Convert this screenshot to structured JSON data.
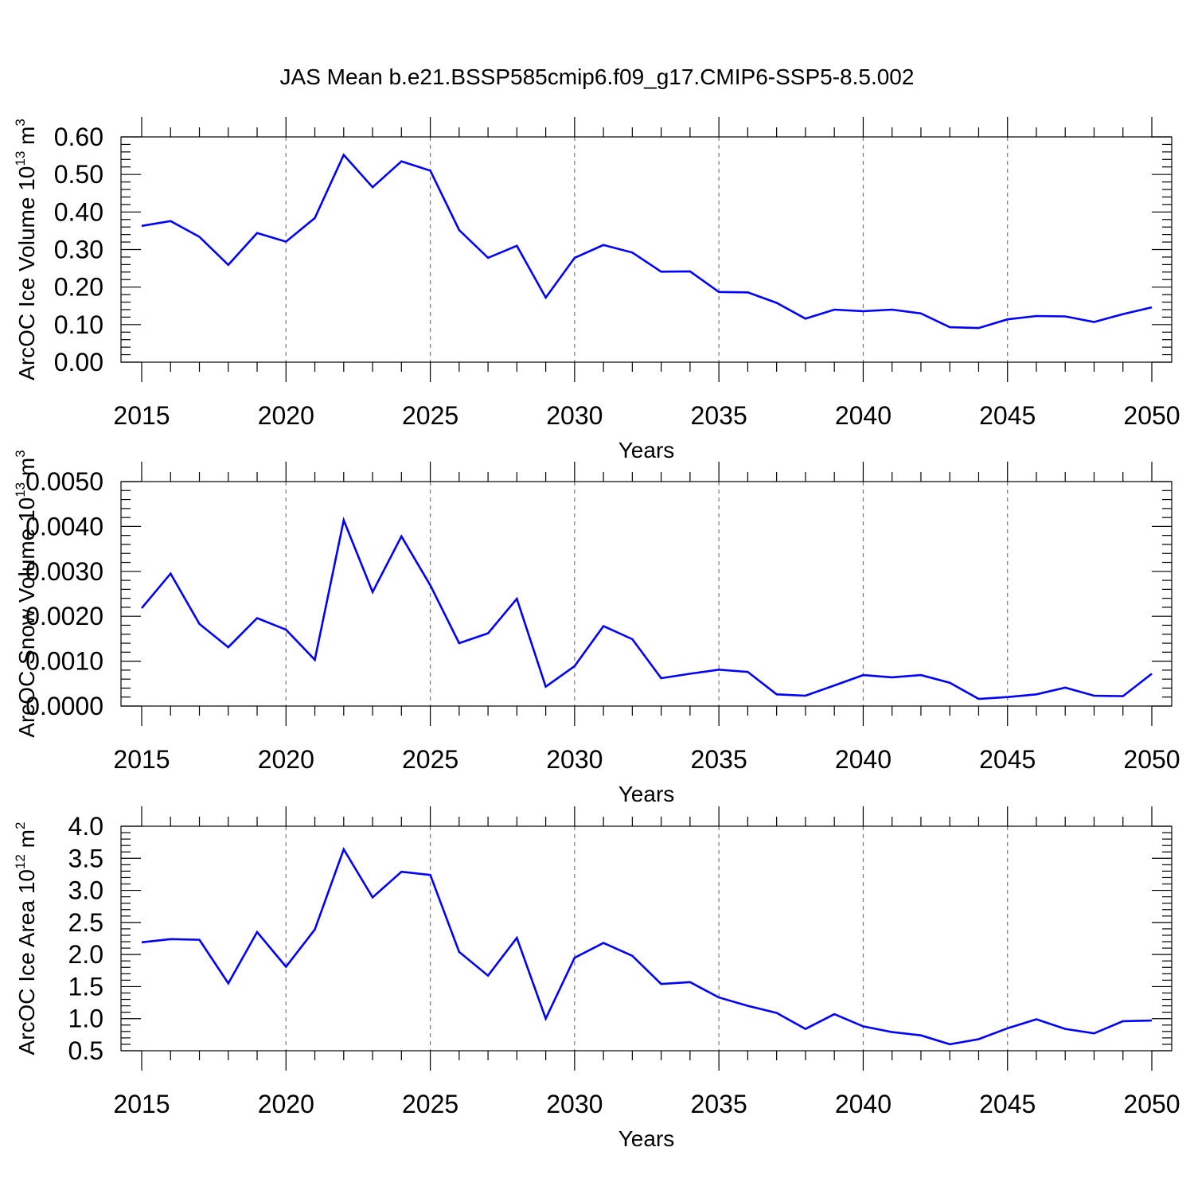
{
  "figure": {
    "title": "JAS Mean b.e21.BSSP585cmip6.f09_g17.CMIP6-SSP5-8.5.002"
  },
  "chart_data": [
    {
      "type": "line",
      "title": "JAS Mean b.e21.BSSP585cmip6.f09_g17.CMIP6-SSP5-8.5.002",
      "xlabel": "Years",
      "ylabel": {
        "main": "ArcOC Ice Volume 10",
        "exp": "13",
        "unit": " m",
        "unit_exp": "3"
      },
      "xlim": [
        2015,
        2050
      ],
      "ylim": [
        0.0,
        0.6
      ],
      "xticks": [
        "2015",
        "2020",
        "2025",
        "2030",
        "2035",
        "2040",
        "2045",
        "2050"
      ],
      "yticks": [
        "0.00",
        "0.10",
        "0.20",
        "0.30",
        "0.40",
        "0.50",
        "0.60"
      ],
      "ytick_values": [
        0.0,
        0.1,
        0.2,
        0.3,
        0.4,
        0.5,
        0.6
      ],
      "grid": "vertical dashed at major x ticks",
      "color": "#0000ff",
      "x": [
        2015,
        2016,
        2017,
        2018,
        2019,
        2020,
        2021,
        2022,
        2023,
        2024,
        2025,
        2026,
        2027,
        2028,
        2029,
        2030,
        2031,
        2032,
        2033,
        2034,
        2035,
        2036,
        2037,
        2038,
        2039,
        2040,
        2041,
        2042,
        2043,
        2044,
        2045,
        2046,
        2047,
        2048,
        2049,
        2050
      ],
      "values": [
        0.363,
        0.376,
        0.334,
        0.259,
        0.344,
        0.321,
        0.384,
        0.552,
        0.466,
        0.535,
        0.51,
        0.352,
        0.278,
        0.31,
        0.172,
        0.278,
        0.312,
        0.292,
        0.241,
        0.242,
        0.187,
        0.186,
        0.158,
        0.116,
        0.14,
        0.136,
        0.14,
        0.13,
        0.093,
        0.091,
        0.114,
        0.123,
        0.122,
        0.107,
        0.128,
        0.146
      ]
    },
    {
      "type": "line",
      "xlabel": "Years",
      "ylabel": {
        "main": "ArcOC Snow Volume 10",
        "exp": "13",
        "unit": " m",
        "unit_exp": "3"
      },
      "xlim": [
        2015,
        2050
      ],
      "ylim": [
        0.0,
        0.005
      ],
      "xticks": [
        "2015",
        "2020",
        "2025",
        "2030",
        "2035",
        "2040",
        "2045",
        "2050"
      ],
      "yticks": [
        "0.0000",
        "0.0010",
        "0.0020",
        "0.0030",
        "0.0040",
        "0.0050"
      ],
      "ytick_values": [
        0.0,
        0.001,
        0.002,
        0.003,
        0.004,
        0.005
      ],
      "grid": "vertical dashed at major x ticks",
      "color": "#0000ff",
      "x": [
        2015,
        2016,
        2017,
        2018,
        2019,
        2020,
        2021,
        2022,
        2023,
        2024,
        2025,
        2026,
        2027,
        2028,
        2029,
        2030,
        2031,
        2032,
        2033,
        2034,
        2035,
        2036,
        2037,
        2038,
        2039,
        2040,
        2041,
        2042,
        2043,
        2044,
        2045,
        2046,
        2047,
        2048,
        2049,
        2050
      ],
      "values": [
        0.00218,
        0.00295,
        0.00183,
        0.00131,
        0.00196,
        0.0017,
        0.00103,
        0.00414,
        0.00254,
        0.00378,
        0.00269,
        0.0014,
        0.00162,
        0.00239,
        0.00043,
        0.00089,
        0.00178,
        0.00149,
        0.00062,
        0.00072,
        0.00081,
        0.00076,
        0.00026,
        0.00023,
        0.00046,
        0.00069,
        0.00064,
        0.00069,
        0.00052,
        0.00016,
        0.0002,
        0.00026,
        0.00041,
        0.00023,
        0.00022,
        0.00072
      ]
    },
    {
      "type": "line",
      "xlabel": "Years",
      "ylabel": {
        "main": "ArcOC Ice Area 10",
        "exp": "12",
        "unit": " m",
        "unit_exp": "2"
      },
      "xlim": [
        2015,
        2050
      ],
      "ylim": [
        0.5,
        4.0
      ],
      "xticks": [
        "2015",
        "2020",
        "2025",
        "2030",
        "2035",
        "2040",
        "2045",
        "2050"
      ],
      "yticks": [
        "0.5",
        "1.0",
        "1.5",
        "2.0",
        "2.5",
        "3.0",
        "3.5",
        "4.0"
      ],
      "ytick_values": [
        0.5,
        1.0,
        1.5,
        2.0,
        2.5,
        3.0,
        3.5,
        4.0
      ],
      "grid": "vertical dashed at major x ticks",
      "color": "#0000ff",
      "x": [
        2015,
        2016,
        2017,
        2018,
        2019,
        2020,
        2021,
        2022,
        2023,
        2024,
        2025,
        2026,
        2027,
        2028,
        2029,
        2030,
        2031,
        2032,
        2033,
        2034,
        2035,
        2036,
        2037,
        2038,
        2039,
        2040,
        2041,
        2042,
        2043,
        2044,
        2045,
        2046,
        2047,
        2048,
        2049,
        2050
      ],
      "values": [
        2.19,
        2.24,
        2.23,
        1.55,
        2.35,
        1.81,
        2.39,
        3.64,
        2.89,
        3.29,
        3.24,
        2.04,
        1.67,
        2.26,
        1.0,
        1.95,
        2.18,
        1.98,
        1.54,
        1.57,
        1.33,
        1.2,
        1.09,
        0.84,
        1.07,
        0.88,
        0.79,
        0.74,
        0.6,
        0.68,
        0.85,
        0.99,
        0.84,
        0.77,
        0.96,
        0.97
      ]
    }
  ]
}
